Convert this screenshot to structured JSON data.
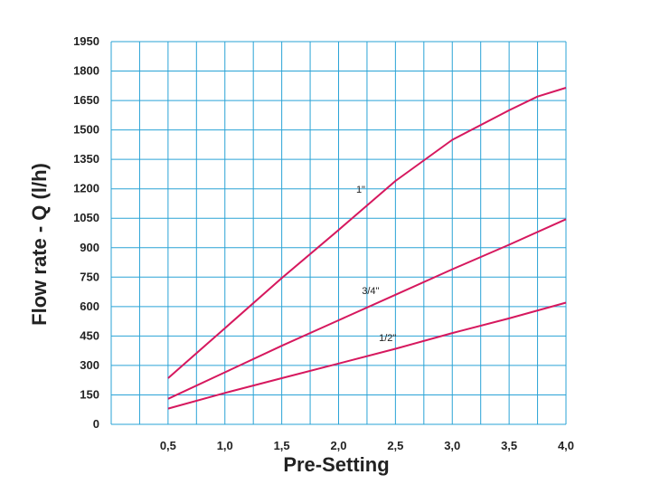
{
  "chart_data": {
    "type": "line",
    "xlabel": "Pre-Setting",
    "ylabel": "Flow rate - Q (l/h)",
    "xlim": [
      0,
      4.0
    ],
    "ylim": [
      0,
      1950
    ],
    "x_ticks": [
      "0,5",
      "1,0",
      "1,5",
      "2,0",
      "2,5",
      "3,0",
      "3,5",
      "4,0"
    ],
    "y_ticks": [
      "0",
      "150",
      "300",
      "450",
      "600",
      "750",
      "900",
      "1050",
      "1200",
      "1350",
      "1500",
      "1650",
      "1800",
      "1950"
    ],
    "grid": true,
    "grid_color": "#2aa3d6",
    "line_color": "#d6185e",
    "series": [
      {
        "name": "1\"",
        "x": [
          0.5,
          1.0,
          1.5,
          2.0,
          2.5,
          3.0,
          3.5,
          3.75,
          4.0
        ],
        "y": [
          235,
          490,
          745,
          990,
          1240,
          1450,
          1600,
          1670,
          1715
        ]
      },
      {
        "name": "3/4\"",
        "x": [
          0.5,
          1.0,
          1.5,
          2.0,
          2.5,
          3.0,
          3.5,
          4.0
        ],
        "y": [
          130,
          265,
          400,
          530,
          660,
          790,
          915,
          1045
        ]
      },
      {
        "name": "1/2\"",
        "x": [
          0.5,
          1.0,
          1.5,
          2.0,
          2.5,
          3.0,
          3.5,
          4.0
        ],
        "y": [
          80,
          160,
          235,
          310,
          385,
          465,
          540,
          620
        ]
      }
    ]
  }
}
